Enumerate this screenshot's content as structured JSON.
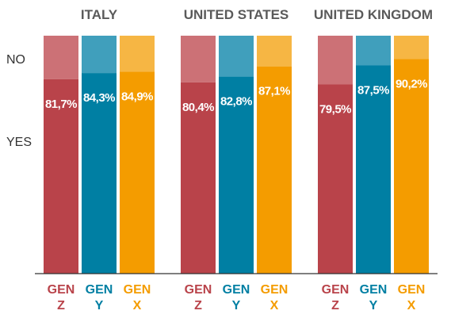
{
  "chart_data": {
    "type": "bar",
    "y_categories": [
      "NO",
      "YES"
    ],
    "generations": [
      {
        "line1": "GEN",
        "line2": "Z"
      },
      {
        "line1": "GEN",
        "line2": "Y"
      },
      {
        "line1": "GEN",
        "line2": "X"
      }
    ],
    "groups": [
      {
        "country": "ITALY",
        "yes": [
          81.7,
          84.3,
          84.9
        ],
        "labels": [
          "81,7%",
          "84,3%",
          "84,9%"
        ]
      },
      {
        "country": "UNITED STATES",
        "yes": [
          80.4,
          82.8,
          87.1
        ],
        "labels": [
          "80,4%",
          "82,8%",
          "87,1%"
        ]
      },
      {
        "country": "UNITED KINGDOM",
        "yes": [
          79.5,
          87.5,
          90.2
        ],
        "labels": [
          "79,5%",
          "87,5%",
          "90,2%"
        ]
      }
    ],
    "ylim": [
      0,
      100
    ],
    "colors": {
      "gen_z": "#b9434a",
      "gen_z_no": "#cc7176",
      "gen_y": "#007fa3",
      "gen_y_no": "#409fbc",
      "gen_x": "#f49c00",
      "gen_x_no": "#f6b644",
      "title": "#5a5a5a",
      "axis": "#333333"
    }
  }
}
